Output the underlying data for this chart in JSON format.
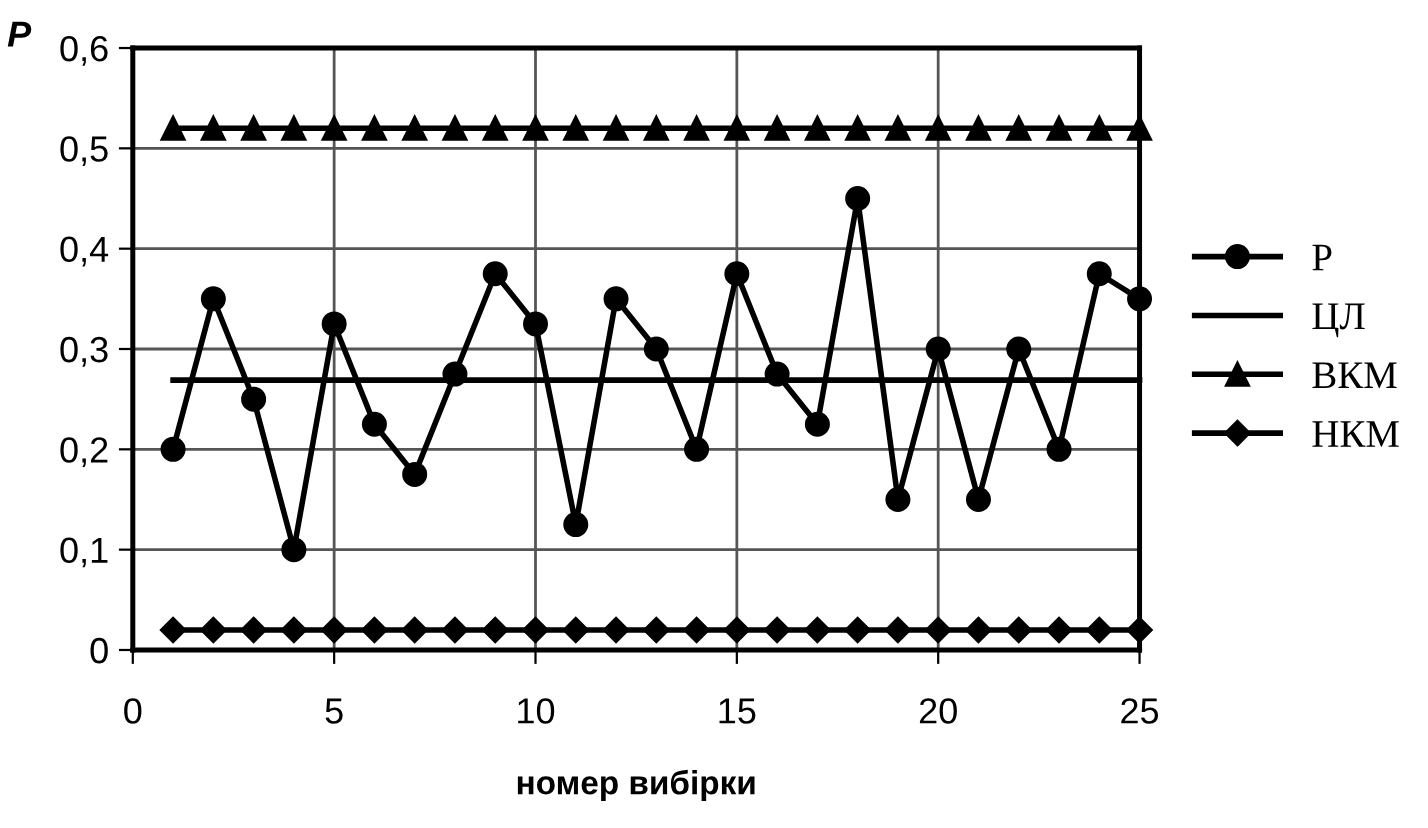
{
  "chart_data": {
    "type": "line",
    "xlabel": "номер вибірки",
    "ylabel": "P",
    "x": [
      1,
      2,
      3,
      4,
      5,
      6,
      7,
      8,
      9,
      10,
      11,
      12,
      13,
      14,
      15,
      16,
      17,
      18,
      19,
      20,
      21,
      22,
      23,
      24,
      25
    ],
    "series": [
      {
        "name": "P",
        "color": "#000000",
        "marker": "circle",
        "values": [
          0.2,
          0.35,
          0.25,
          0.1,
          0.325,
          0.225,
          0.175,
          0.275,
          0.375,
          0.325,
          0.125,
          0.35,
          0.3,
          0.2,
          0.375,
          0.275,
          0.225,
          0.45,
          0.15,
          0.3,
          0.15,
          0.3,
          0.2,
          0.375,
          0.35
        ]
      },
      {
        "name": "ЦЛ",
        "color": "#000000",
        "marker": "none",
        "values": [
          0.269,
          0.269,
          0.269,
          0.269,
          0.269,
          0.269,
          0.269,
          0.269,
          0.269,
          0.269,
          0.269,
          0.269,
          0.269,
          0.269,
          0.269,
          0.269,
          0.269,
          0.269,
          0.269,
          0.269,
          0.269,
          0.269,
          0.269,
          0.269,
          0.269
        ]
      },
      {
        "name": "ВКМ",
        "color": "#000000",
        "marker": "triangle",
        "values": [
          0.52,
          0.52,
          0.52,
          0.52,
          0.52,
          0.52,
          0.52,
          0.52,
          0.52,
          0.52,
          0.52,
          0.52,
          0.52,
          0.52,
          0.52,
          0.52,
          0.52,
          0.52,
          0.52,
          0.52,
          0.52,
          0.52,
          0.52,
          0.52,
          0.52
        ]
      },
      {
        "name": "НКМ",
        "color": "#000000",
        "marker": "diamond",
        "values": [
          0.02,
          0.02,
          0.02,
          0.02,
          0.02,
          0.02,
          0.02,
          0.02,
          0.02,
          0.02,
          0.02,
          0.02,
          0.02,
          0.02,
          0.02,
          0.02,
          0.02,
          0.02,
          0.02,
          0.02,
          0.02,
          0.02,
          0.02,
          0.02,
          0.02
        ]
      }
    ],
    "xlim": [
      0,
      25
    ],
    "xticks": [
      0,
      5,
      10,
      15,
      20,
      25
    ],
    "ylim": [
      0,
      0.6
    ],
    "yticks": [
      0,
      {
        "value": 0.1,
        "label": "0,1"
      },
      {
        "value": 0.2,
        "label": "0,2"
      },
      {
        "value": 0.3,
        "label": "0,3"
      },
      {
        "value": 0.4,
        "label": "0,4"
      },
      {
        "value": 0.5,
        "label": "0,5"
      },
      {
        "value": 0.6,
        "label": "0,6"
      }
    ],
    "grid": true,
    "legend": "right",
    "line_style": "solid"
  }
}
